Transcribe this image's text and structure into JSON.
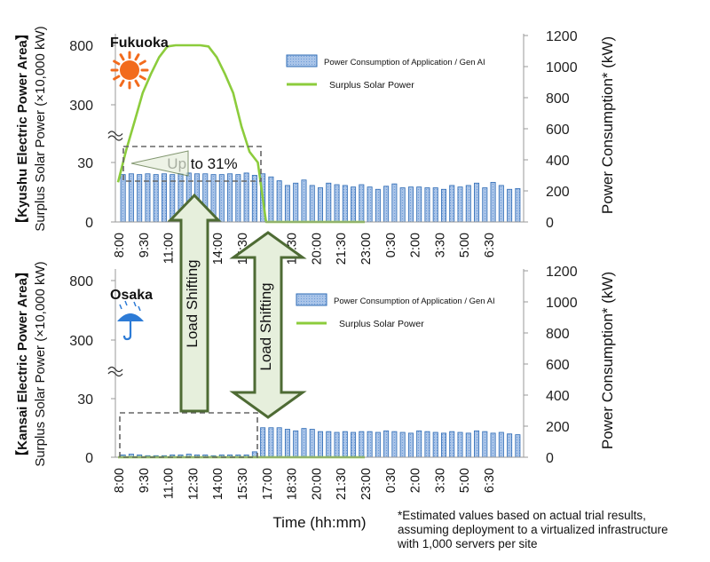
{
  "footnote": [
    "*Estimated values based on actual trial results,",
    "assuming deployment to a virtualized infrastructure",
    "with 1,000 servers per site"
  ],
  "xlabel": "Time (hh:mm)",
  "x_ticks": [
    "8:00",
    "9:30",
    "11:00",
    "12:30",
    "14:00",
    "15:30",
    "17:00",
    "18:30",
    "20:00",
    "21:30",
    "23:00",
    "0:30",
    "2:00",
    "3:30",
    "5:00",
    "6:30"
  ],
  "legend": {
    "bar": "Power Consumption of Application / Gen AI",
    "line": "Surplus Solar Power"
  },
  "arrow_label": "Load Shifting",
  "annotation": "Up to 31%",
  "colors": {
    "bar_fill": "#a9c4e8",
    "bar_stroke": "#2e6bb5",
    "line": "#8ccc3c",
    "arrow_fill": "#e6efdc",
    "arrow_stroke": "#4e6b34",
    "sun": "#f26b1d"
  },
  "chart_data": [
    {
      "type": "bar+line",
      "title": "Fukuoka",
      "ylabel_left": [
        "【Kyushu Electric Power Area】",
        "Surplus Solar Power (×10,000 kW)"
      ],
      "ylabel_right": "Power Consumption* (kW)",
      "left_ticks": [
        "0",
        "30",
        "300",
        "800"
      ],
      "right_ticks": [
        "0",
        "200",
        "400",
        "600",
        "800",
        "1000",
        "1200"
      ],
      "right_ylim": [
        0,
        1200
      ],
      "left_axis_broken": true,
      "icon": "sun-icon",
      "bar_interval_minutes": 30,
      "bar_values_kw": [
        305,
        310,
        305,
        310,
        305,
        310,
        305,
        310,
        315,
        310,
        310,
        305,
        305,
        310,
        305,
        315,
        300,
        310,
        290,
        265,
        235,
        250,
        270,
        235,
        220,
        250,
        240,
        235,
        225,
        240,
        225,
        210,
        230,
        245,
        220,
        225,
        225,
        220,
        220,
        210,
        235,
        225,
        235,
        250,
        220,
        255,
        235,
        210,
        215
      ],
      "surplus_solar_x": [
        "8:00",
        "8:30",
        "9:00",
        "9:30",
        "10:00",
        "10:30",
        "11:00",
        "11:30",
        "12:00",
        "12:30",
        "13:00",
        "13:30",
        "14:00",
        "14:30",
        "15:00",
        "15:30",
        "16:00",
        "16:30",
        "17:00",
        "23:00"
      ],
      "surplus_solar_y": [
        20,
        90,
        220,
        400,
        560,
        700,
        790,
        820,
        830,
        830,
        820,
        790,
        700,
        560,
        400,
        200,
        80,
        30,
        0,
        0
      ]
    },
    {
      "type": "bar+line",
      "title": "Osaka",
      "ylabel_left": [
        "【Kansai Electric Power Area】",
        "Surplus Solar Power (×10,000 kW)"
      ],
      "ylabel_right": "Power Consumption* (kW)",
      "left_ticks": [
        "0",
        "30",
        "300",
        "800"
      ],
      "right_ticks": [
        "0",
        "200",
        "400",
        "600",
        "800",
        "1000",
        "1200"
      ],
      "right_ylim": [
        0,
        1200
      ],
      "left_axis_broken": true,
      "icon": "umbrella-icon",
      "bar_interval_minutes": 30,
      "bar_values_kw": [
        15,
        20,
        15,
        10,
        10,
        10,
        15,
        15,
        20,
        15,
        15,
        10,
        15,
        15,
        15,
        15,
        35,
        190,
        190,
        190,
        180,
        170,
        185,
        180,
        165,
        165,
        160,
        165,
        160,
        165,
        165,
        160,
        170,
        165,
        160,
        155,
        170,
        165,
        160,
        155,
        165,
        160,
        155,
        170,
        165,
        155,
        160,
        150,
        145
      ],
      "surplus_solar_x": [
        "8:00",
        "23:00"
      ],
      "surplus_solar_y": [
        0,
        0
      ]
    }
  ]
}
